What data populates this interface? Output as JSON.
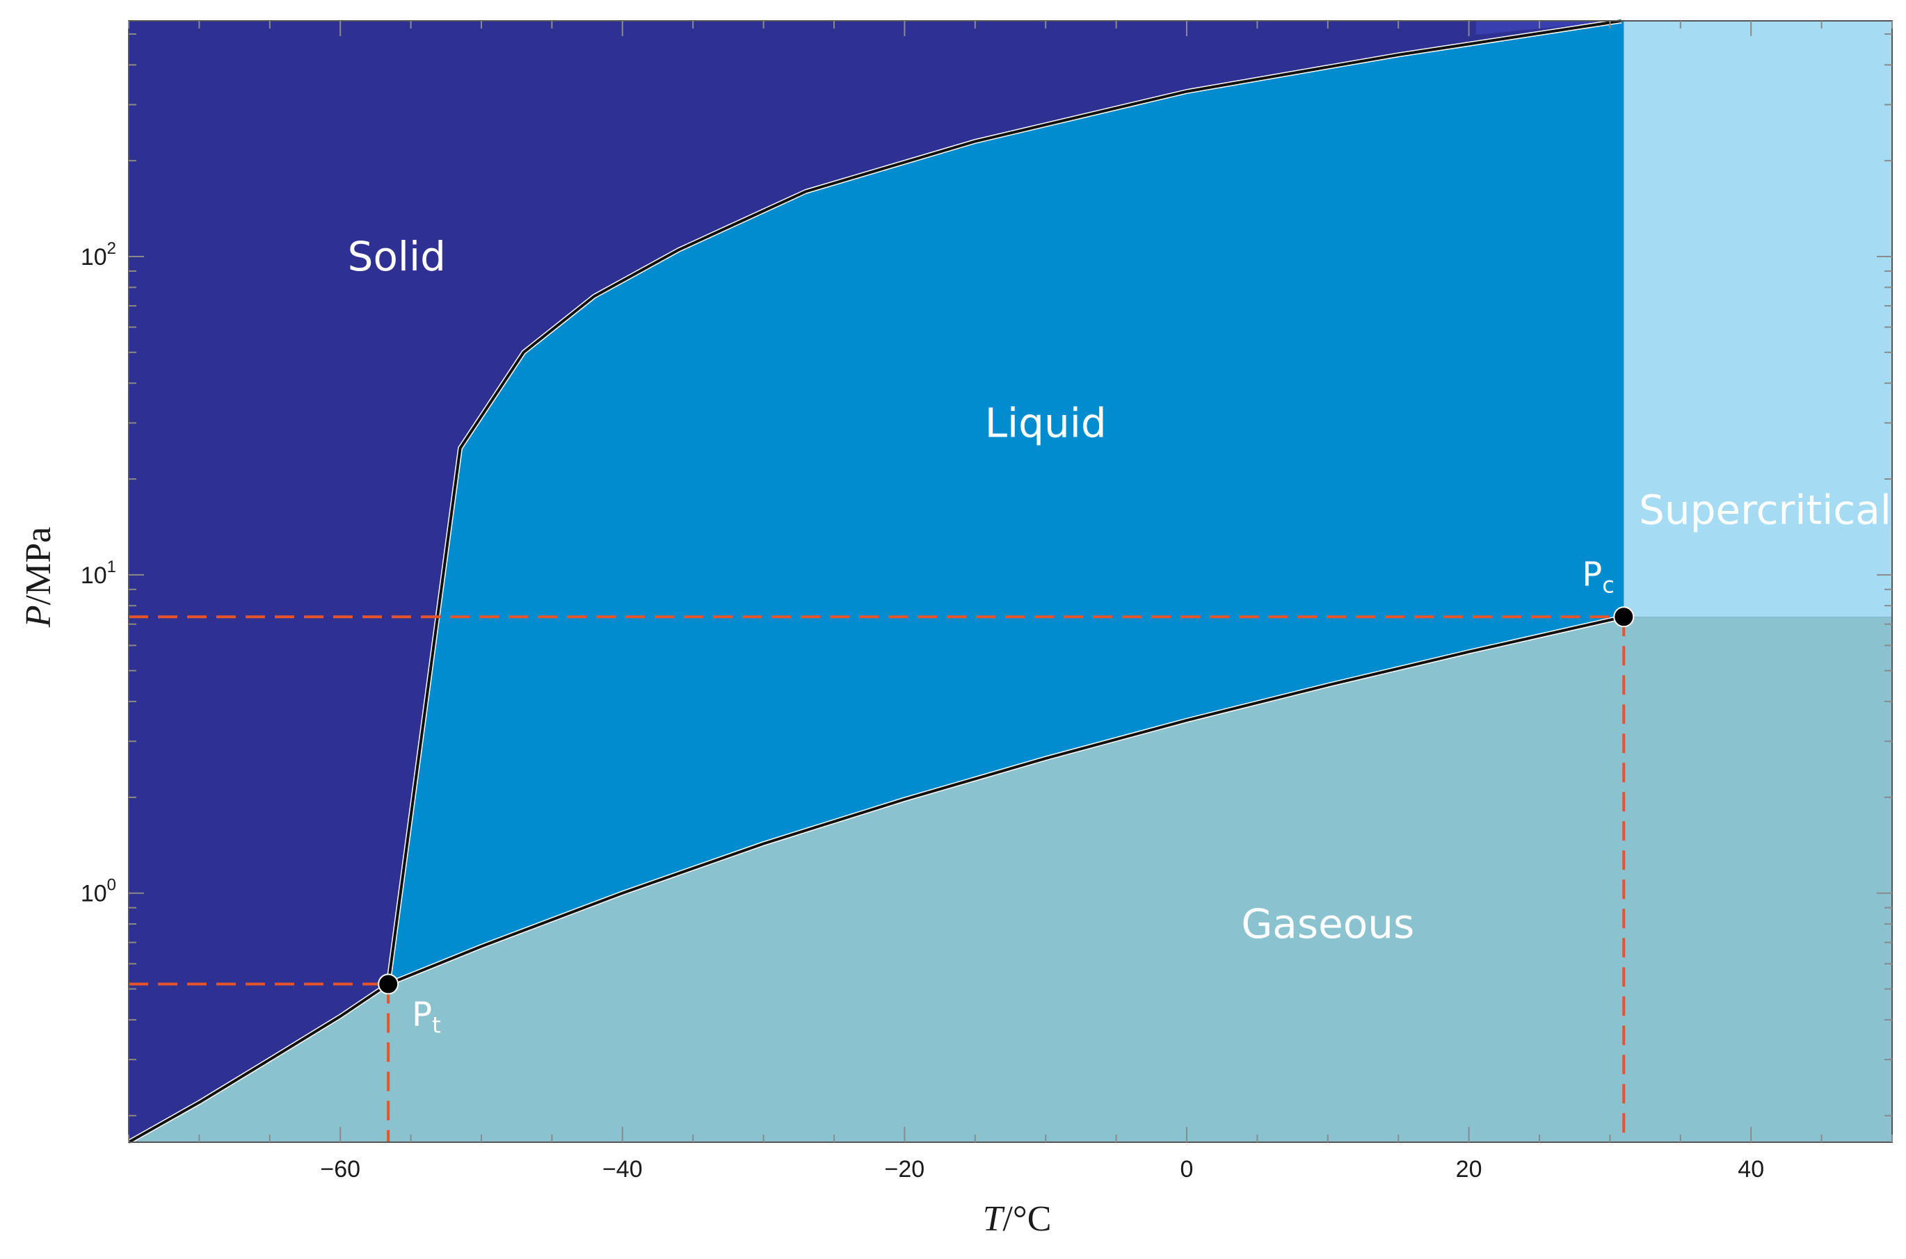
{
  "chart_data": {
    "type": "area",
    "xlabel_var": "T",
    "xlabel_unit": "/°C",
    "ylabel_var": "P",
    "ylabel_unit": "/MPa",
    "xlim": [
      -75,
      50
    ],
    "ylim": [
      0.165,
      550
    ],
    "yscale": "log",
    "x_ticks": [
      -60,
      -40,
      -20,
      0,
      20,
      40
    ],
    "x_tick_labels": [
      "−60",
      "−40",
      "−20",
      "0",
      "20",
      "40"
    ],
    "y_ticks": [
      {
        "value": 1,
        "base": "10",
        "exp": "0"
      },
      {
        "value": 10,
        "base": "10",
        "exp": "1"
      },
      {
        "value": 100,
        "base": "10",
        "exp": "2"
      }
    ],
    "regions": [
      {
        "name": "Solid",
        "color": "#2e3192",
        "label_at": [
          -56,
          100
        ]
      },
      {
        "name": "Liquid",
        "color": "#008ccf",
        "label_at": [
          -10,
          30
        ]
      },
      {
        "name": "Supercritical",
        "color": "#a6dcf3",
        "label_at": [
          41,
          16
        ]
      },
      {
        "name": "Gaseous",
        "color": "#8bc2d0",
        "label_at": [
          10,
          0.8
        ]
      }
    ],
    "sublimation_curve": [
      [
        -75,
        0.165
      ],
      [
        -70,
        0.22
      ],
      [
        -65,
        0.3
      ],
      [
        -60,
        0.41
      ],
      [
        -56.6,
        0.518
      ]
    ],
    "melting_curve": [
      [
        -56.6,
        0.518
      ],
      [
        -51.5,
        25
      ],
      [
        -47,
        50
      ],
      [
        -42,
        75
      ],
      [
        -36,
        105
      ],
      [
        -27,
        160
      ],
      [
        -15,
        230
      ],
      [
        0,
        330
      ],
      [
        15,
        430
      ],
      [
        30.8,
        550
      ]
    ],
    "vaporization_curve": [
      [
        -56.6,
        0.518
      ],
      [
        -50,
        0.68
      ],
      [
        -40,
        1.0
      ],
      [
        -30,
        1.43
      ],
      [
        -20,
        1.97
      ],
      [
        -10,
        2.65
      ],
      [
        0,
        3.49
      ],
      [
        10,
        4.5
      ],
      [
        20,
        5.73
      ],
      [
        30.98,
        7.38
      ]
    ],
    "points": [
      {
        "name": "P",
        "sub": "t",
        "T": -56.6,
        "P": 0.518
      },
      {
        "name": "P",
        "sub": "c",
        "T": 30.98,
        "P": 7.38
      }
    ],
    "dash_color": "#e8542a",
    "line_color": "#111111",
    "plot_bg": "#f4f7ff"
  }
}
